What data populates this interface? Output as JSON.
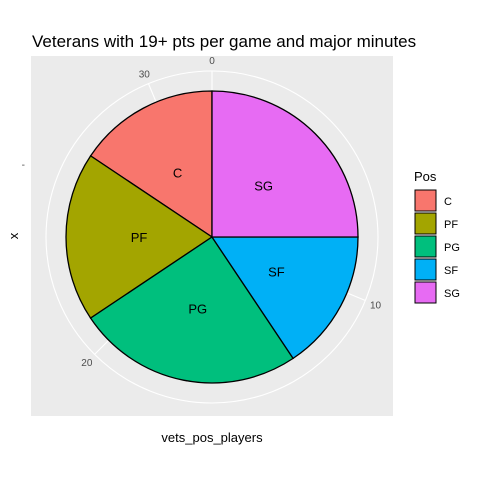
{
  "chart_data": {
    "type": "pie",
    "title": "Veterans with 19+ pts per game and major minutes",
    "xlabel": "vets_pos_players",
    "ylabel": "x",
    "y_tick_label": "-",
    "radial_ticks": [
      "0",
      "10",
      "20",
      "30"
    ],
    "total": 32,
    "categories": [
      "C",
      "PF",
      "PG",
      "SF",
      "SG"
    ],
    "values": [
      5,
      6,
      8,
      5,
      8
    ],
    "colors": [
      "#F8766D",
      "#A3A500",
      "#00BF7D",
      "#00B0F6",
      "#E76BF3"
    ],
    "legend": {
      "title": "Pos",
      "position": "right",
      "items": [
        "C",
        "PF",
        "PG",
        "SF",
        "SG"
      ]
    },
    "panel_background": "#EBEBEB",
    "grid_color": "#FFFFFF"
  }
}
